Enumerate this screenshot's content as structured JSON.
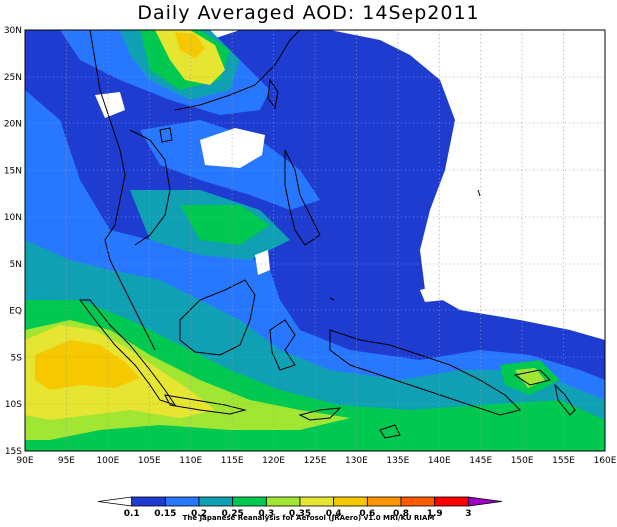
{
  "title": "Daily Averaged AOD: 14Sep2011",
  "footer": "The Japanese Reanalysis for Aerosol (JRAero) v1.0 MRI/KU RIAM",
  "map": {
    "lon_range": [
      90,
      160
    ],
    "lat_range": [
      -15,
      30
    ],
    "lon_ticks": [
      "90E",
      "95E",
      "100E",
      "105E",
      "110E",
      "115E",
      "120E",
      "125E",
      "130E",
      "135E",
      "140E",
      "145E",
      "150E",
      "155E",
      "160E"
    ],
    "lat_ticks": [
      "15S",
      "10S",
      "5S",
      "EQ",
      "5N",
      "10N",
      "15N",
      "20N",
      "25N",
      "30N"
    ],
    "grid": "dotted every 5 degrees"
  },
  "colorbar": {
    "labels": [
      "0.1",
      "0.15",
      "0.2",
      "0.25",
      "0.3",
      "0.35",
      "0.4",
      "0.6",
      "0.8",
      "1.9",
      "3"
    ],
    "colors": [
      "#ffffff",
      "#1e3ccf",
      "#2878ff",
      "#0fa0b4",
      "#00c850",
      "#a0e632",
      "#e6e632",
      "#f5c800",
      "#ff9600",
      "#ff5a00",
      "#ff0000",
      "#a000c8"
    ]
  }
}
